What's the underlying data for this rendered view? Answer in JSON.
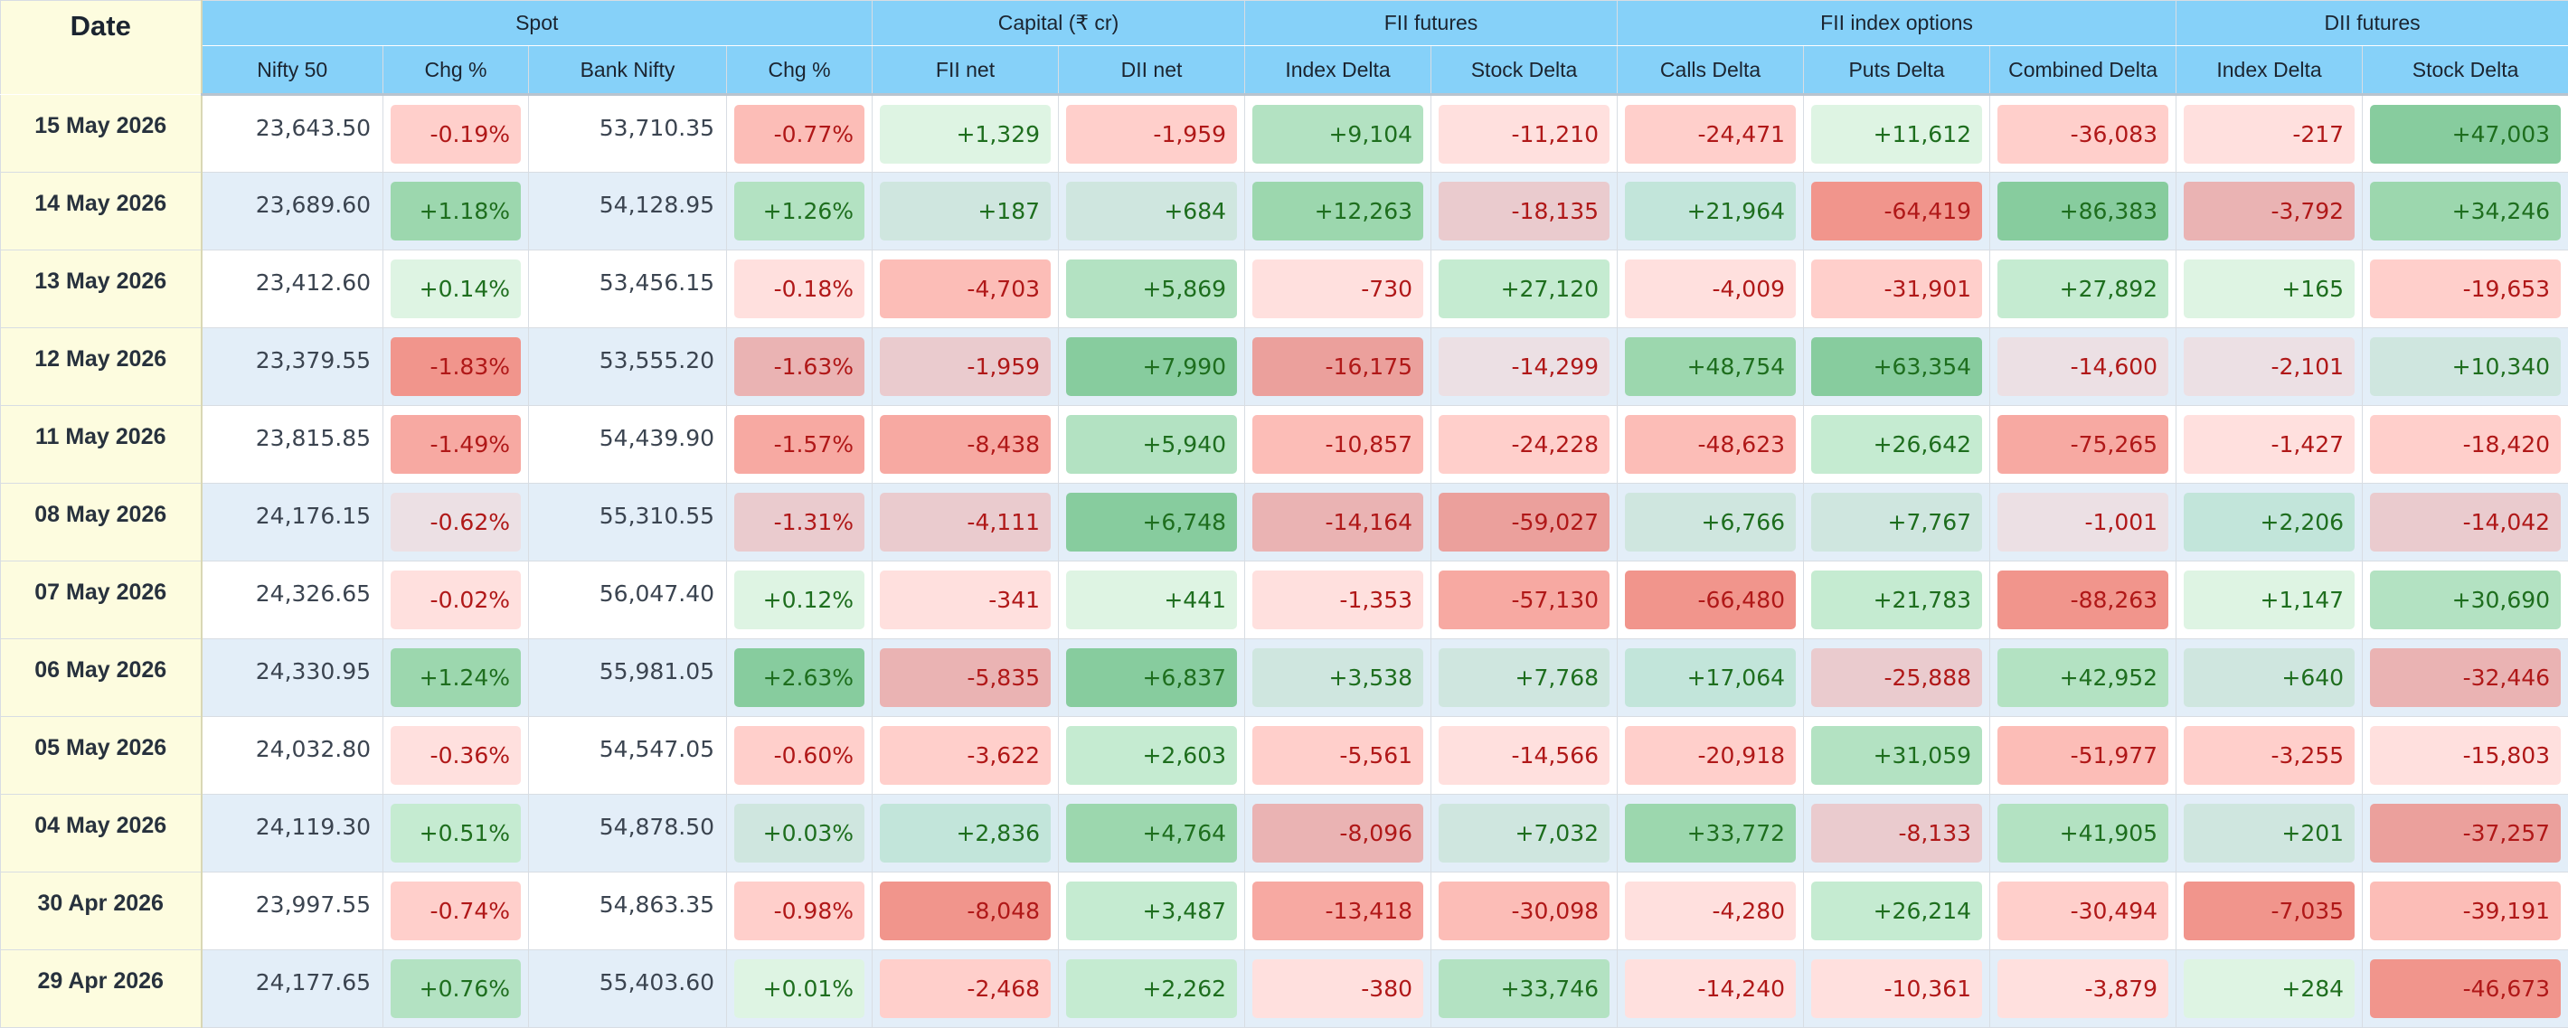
{
  "header": {
    "date": "Date",
    "groups": [
      "Spot",
      "Capital (₹ cr)",
      "FII futures",
      "FII index options",
      "DII futures"
    ],
    "columns": [
      "Nifty 50",
      "Chg %",
      "Bank Nifty",
      "Chg %",
      "FII net",
      "DII net",
      "Index Delta",
      "Stock Delta",
      "Calls Delta",
      "Puts Delta",
      "Combined Delta",
      "Index Delta",
      "Stock Delta"
    ]
  },
  "colors": {
    "header_bg": "#86d1f9",
    "date_bg": "#fdfcdf",
    "row_alt_bg": "#e3eef8",
    "positive_text": "#1e6e1e",
    "negative_text": "#b01818"
  },
  "rows": [
    {
      "date": "15 May 2026",
      "nifty": "23,643.50",
      "nifty_chg": "-0.19%",
      "bank": "53,710.35",
      "bank_chg": "-0.77%",
      "fii_net": "+1,329",
      "dii_net": "-1,959",
      "fii_idx": "+9,104",
      "fii_stk": "-11,210",
      "calls": "-24,471",
      "puts": "+11,612",
      "combined": "-36,083",
      "dii_idx": "-217",
      "dii_stk": "+47,003"
    },
    {
      "date": "14 May 2026",
      "nifty": "23,689.60",
      "nifty_chg": "+1.18%",
      "bank": "54,128.95",
      "bank_chg": "+1.26%",
      "fii_net": "+187",
      "dii_net": "+684",
      "fii_idx": "+12,263",
      "fii_stk": "-18,135",
      "calls": "+21,964",
      "puts": "-64,419",
      "combined": "+86,383",
      "dii_idx": "-3,792",
      "dii_stk": "+34,246"
    },
    {
      "date": "13 May 2026",
      "nifty": "23,412.60",
      "nifty_chg": "+0.14%",
      "bank": "53,456.15",
      "bank_chg": "-0.18%",
      "fii_net": "-4,703",
      "dii_net": "+5,869",
      "fii_idx": "-730",
      "fii_stk": "+27,120",
      "calls": "-4,009",
      "puts": "-31,901",
      "combined": "+27,892",
      "dii_idx": "+165",
      "dii_stk": "-19,653"
    },
    {
      "date": "12 May 2026",
      "nifty": "23,379.55",
      "nifty_chg": "-1.83%",
      "bank": "53,555.20",
      "bank_chg": "-1.63%",
      "fii_net": "-1,959",
      "dii_net": "+7,990",
      "fii_idx": "-16,175",
      "fii_stk": "-14,299",
      "calls": "+48,754",
      "puts": "+63,354",
      "combined": "-14,600",
      "dii_idx": "-2,101",
      "dii_stk": "+10,340"
    },
    {
      "date": "11 May 2026",
      "nifty": "23,815.85",
      "nifty_chg": "-1.49%",
      "bank": "54,439.90",
      "bank_chg": "-1.57%",
      "fii_net": "-8,438",
      "dii_net": "+5,940",
      "fii_idx": "-10,857",
      "fii_stk": "-24,228",
      "calls": "-48,623",
      "puts": "+26,642",
      "combined": "-75,265",
      "dii_idx": "-1,427",
      "dii_stk": "-18,420"
    },
    {
      "date": "08 May 2026",
      "nifty": "24,176.15",
      "nifty_chg": "-0.62%",
      "bank": "55,310.55",
      "bank_chg": "-1.31%",
      "fii_net": "-4,111",
      "dii_net": "+6,748",
      "fii_idx": "-14,164",
      "fii_stk": "-59,027",
      "calls": "+6,766",
      "puts": "+7,767",
      "combined": "-1,001",
      "dii_idx": "+2,206",
      "dii_stk": "-14,042"
    },
    {
      "date": "07 May 2026",
      "nifty": "24,326.65",
      "nifty_chg": "-0.02%",
      "bank": "56,047.40",
      "bank_chg": "+0.12%",
      "fii_net": "-341",
      "dii_net": "+441",
      "fii_idx": "-1,353",
      "fii_stk": "-57,130",
      "calls": "-66,480",
      "puts": "+21,783",
      "combined": "-88,263",
      "dii_idx": "+1,147",
      "dii_stk": "+30,690"
    },
    {
      "date": "06 May 2026",
      "nifty": "24,330.95",
      "nifty_chg": "+1.24%",
      "bank": "55,981.05",
      "bank_chg": "+2.63%",
      "fii_net": "-5,835",
      "dii_net": "+6,837",
      "fii_idx": "+3,538",
      "fii_stk": "+7,768",
      "calls": "+17,064",
      "puts": "-25,888",
      "combined": "+42,952",
      "dii_idx": "+640",
      "dii_stk": "-32,446"
    },
    {
      "date": "05 May 2026",
      "nifty": "24,032.80",
      "nifty_chg": "-0.36%",
      "bank": "54,547.05",
      "bank_chg": "-0.60%",
      "fii_net": "-3,622",
      "dii_net": "+2,603",
      "fii_idx": "-5,561",
      "fii_stk": "-14,566",
      "calls": "-20,918",
      "puts": "+31,059",
      "combined": "-51,977",
      "dii_idx": "-3,255",
      "dii_stk": "-15,803"
    },
    {
      "date": "04 May 2026",
      "nifty": "24,119.30",
      "nifty_chg": "+0.51%",
      "bank": "54,878.50",
      "bank_chg": "+0.03%",
      "fii_net": "+2,836",
      "dii_net": "+4,764",
      "fii_idx": "-8,096",
      "fii_stk": "+7,032",
      "calls": "+33,772",
      "puts": "-8,133",
      "combined": "+41,905",
      "dii_idx": "+201",
      "dii_stk": "-37,257"
    },
    {
      "date": "30 Apr 2026",
      "nifty": "23,997.55",
      "nifty_chg": "-0.74%",
      "bank": "54,863.35",
      "bank_chg": "-0.98%",
      "fii_net": "-8,048",
      "dii_net": "+3,487",
      "fii_idx": "-13,418",
      "fii_stk": "-30,098",
      "calls": "-4,280",
      "puts": "+26,214",
      "combined": "-30,494",
      "dii_idx": "-7,035",
      "dii_stk": "-39,191"
    },
    {
      "date": "29 Apr 2026",
      "nifty": "24,177.65",
      "nifty_chg": "+0.76%",
      "bank": "55,403.60",
      "bank_chg": "+0.01%",
      "fii_net": "-2,468",
      "dii_net": "+2,262",
      "fii_idx": "-380",
      "fii_stk": "+33,746",
      "calls": "-14,240",
      "puts": "-10,361",
      "combined": "-3,879",
      "dii_idx": "+284",
      "dii_stk": "-46,673"
    }
  ]
}
